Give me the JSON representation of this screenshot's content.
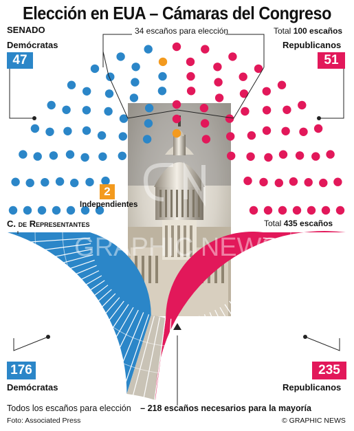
{
  "title": "Elección en EUA – Cámaras del Congreso",
  "senate": {
    "label": "SENADO",
    "seats_up": "34 escaños para elección",
    "total_text": "Total",
    "total_value": "100 escaños",
    "dem_label": "Demócratas",
    "dem_count": "47",
    "rep_label": "Republicanos",
    "rep_count": "51",
    "ind_label": "Independientes",
    "ind_count": "2"
  },
  "house": {
    "label": "C. de Representantes",
    "total_text": "Total",
    "total_value": "435 escaños",
    "dem_label": "Demócratas",
    "dem_count": "176",
    "rep_label": "Republicanos",
    "rep_count": "235"
  },
  "footer": {
    "all_seats": "Todos los escaños para elección",
    "majority": "– 218 escaños necesarios para la mayoría",
    "photo_credit": "Foto: Associated Press",
    "copyright": "© GRAPHIC NEWS"
  },
  "watermark": "GRAPHIC NEWS",
  "colors": {
    "dem": "#2b86c8",
    "rep": "#e2185a",
    "ind": "#f39a1e",
    "vacant": "#c9c3b6"
  },
  "chart_data": [
    {
      "type": "seat-diagram",
      "chamber": "senate",
      "series": [
        {
          "name": "Demócratas",
          "value": 47
        },
        {
          "name": "Independientes",
          "value": 2
        },
        {
          "name": "Republicanos",
          "value": 51
        }
      ],
      "total": 100,
      "up_for_election": 34
    },
    {
      "type": "seat-diagram",
      "chamber": "house",
      "series": [
        {
          "name": "Demócratas",
          "value": 176
        },
        {
          "name": "Republicanos",
          "value": 235
        }
      ],
      "total": 435,
      "majority": 218
    }
  ]
}
